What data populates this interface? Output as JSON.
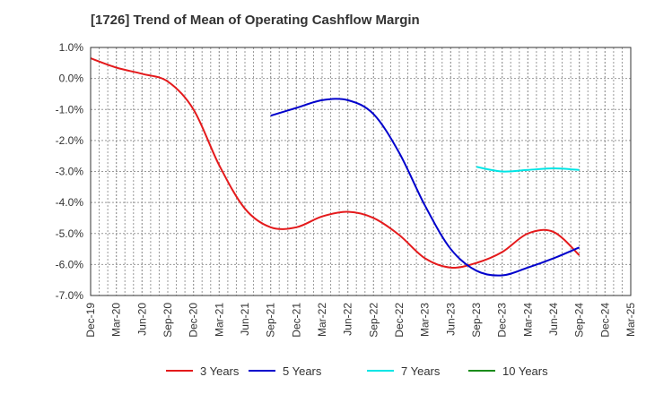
{
  "chart_data": {
    "type": "line",
    "title": "[1726]  Trend of Mean of Operating Cashflow Margin",
    "xlabel": "",
    "ylabel": "",
    "ylim": [
      -7.0,
      1.0
    ],
    "y_ticks": [
      "1.0%",
      "0.0%",
      "-1.0%",
      "-2.0%",
      "-3.0%",
      "-4.0%",
      "-5.0%",
      "-6.0%",
      "-7.0%"
    ],
    "y_tick_values": [
      1,
      0,
      -1,
      -2,
      -3,
      -4,
      -5,
      -6,
      -7
    ],
    "categories": [
      "Dec-19",
      "Mar-20",
      "Jun-20",
      "Sep-20",
      "Dec-20",
      "Mar-21",
      "Jun-21",
      "Sep-21",
      "Dec-21",
      "Mar-22",
      "Jun-22",
      "Sep-22",
      "Dec-22",
      "Mar-23",
      "Jun-23",
      "Sep-23",
      "Dec-23",
      "Mar-24",
      "Jun-24",
      "Sep-24",
      "Dec-24",
      "Mar-25"
    ],
    "grid": true,
    "legend_position": "bottom",
    "series": [
      {
        "name": "3 Years",
        "color": "#e41a1c",
        "values": [
          0.65,
          0.35,
          0.15,
          -0.1,
          -1.0,
          -2.8,
          -4.2,
          -4.8,
          -4.8,
          -4.45,
          -4.3,
          -4.5,
          -5.05,
          -5.8,
          -6.1,
          -5.95,
          -5.6,
          -5.0,
          -4.95,
          -5.7,
          null,
          null
        ]
      },
      {
        "name": "5 Years",
        "color": "#0000cc",
        "values": [
          null,
          null,
          null,
          null,
          null,
          null,
          null,
          -1.2,
          -0.95,
          -0.7,
          -0.7,
          -1.15,
          -2.4,
          -4.1,
          -5.5,
          -6.2,
          -6.35,
          -6.1,
          -5.8,
          -5.45,
          null,
          null
        ]
      },
      {
        "name": "7 Years",
        "color": "#00e5e5",
        "values": [
          null,
          null,
          null,
          null,
          null,
          null,
          null,
          null,
          null,
          null,
          null,
          null,
          null,
          null,
          null,
          -2.85,
          -3.0,
          -2.95,
          -2.9,
          -2.95,
          null,
          null
        ]
      },
      {
        "name": "10 Years",
        "color": "#1a8c1a",
        "values": [
          null,
          null,
          null,
          null,
          null,
          null,
          null,
          null,
          null,
          null,
          null,
          null,
          null,
          null,
          null,
          null,
          null,
          null,
          null,
          null,
          null,
          null
        ]
      }
    ]
  }
}
